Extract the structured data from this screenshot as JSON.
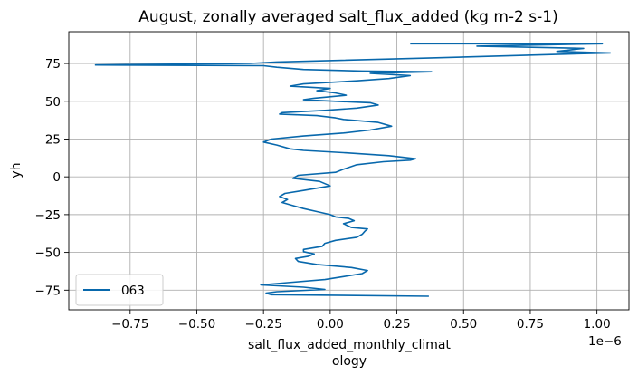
{
  "chart_data": {
    "type": "line",
    "title": "August, zonally averaged salt_flux_added (kg m-2 s-1)",
    "xlabel_line1": "salt_flux_added_monthly_climat",
    "xlabel_line2": "ology",
    "ylabel": "yh",
    "x_offset_text": "1e−6",
    "x_scale": 1e-06,
    "xlim": [
      -0.98,
      1.12
    ],
    "ylim": [
      -88,
      96
    ],
    "xticks": [
      -0.75,
      -0.5,
      -0.25,
      0.0,
      0.25,
      0.5,
      0.75,
      1.0
    ],
    "xtick_labels": [
      "−0.75",
      "−0.50",
      "−0.25",
      "0.00",
      "0.25",
      "0.50",
      "0.75",
      "1.00"
    ],
    "yticks": [
      75,
      50,
      25,
      0,
      -25,
      -50,
      -75
    ],
    "ytick_labels": [
      "75",
      "50",
      "25",
      "0",
      "−25",
      "−50",
      "−75"
    ],
    "grid": true,
    "legend_position": "lower-left",
    "color": "#0868ac",
    "series": [
      {
        "name": "063",
        "points": [
          [
            0.37,
            -79
          ],
          [
            -0.22,
            -78
          ],
          [
            -0.24,
            -77
          ],
          [
            -0.2,
            -76
          ],
          [
            -0.02,
            -74.5
          ],
          [
            -0.1,
            -73
          ],
          [
            -0.26,
            -71.5
          ],
          [
            -0.16,
            -70
          ],
          [
            -0.02,
            -68
          ],
          [
            0.05,
            -66
          ],
          [
            0.12,
            -64
          ],
          [
            0.14,
            -62
          ],
          [
            0.08,
            -60
          ],
          [
            -0.05,
            -58
          ],
          [
            -0.12,
            -56
          ],
          [
            -0.13,
            -54
          ],
          [
            -0.08,
            -52.5
          ],
          [
            -0.06,
            -51
          ],
          [
            -0.1,
            -49.5
          ],
          [
            -0.1,
            -48
          ],
          [
            -0.03,
            -46
          ],
          [
            -0.02,
            -44
          ],
          [
            0.02,
            -42
          ],
          [
            0.1,
            -40
          ],
          [
            0.12,
            -38
          ],
          [
            0.13,
            -36
          ],
          [
            0.14,
            -34.5
          ],
          [
            0.08,
            -33.5
          ],
          [
            0.05,
            -31
          ],
          [
            0.09,
            -29
          ],
          [
            0.07,
            -27.5
          ],
          [
            0.02,
            -26.5
          ],
          [
            0.0,
            -25
          ],
          [
            -0.05,
            -23
          ],
          [
            -0.1,
            -21
          ],
          [
            -0.14,
            -19
          ],
          [
            -0.18,
            -17
          ],
          [
            -0.16,
            -15
          ],
          [
            -0.19,
            -13
          ],
          [
            -0.17,
            -11
          ],
          [
            -0.1,
            -9
          ],
          [
            0.0,
            -6
          ],
          [
            -0.04,
            -3
          ],
          [
            -0.14,
            -1
          ],
          [
            -0.12,
            1
          ],
          [
            0.02,
            3
          ],
          [
            0.05,
            5
          ],
          [
            0.1,
            8
          ],
          [
            0.2,
            10
          ],
          [
            0.3,
            11
          ],
          [
            0.32,
            12
          ],
          [
            0.22,
            14
          ],
          [
            0.05,
            16
          ],
          [
            -0.1,
            17.5
          ],
          [
            -0.15,
            18.5
          ],
          [
            -0.2,
            21
          ],
          [
            -0.25,
            23
          ],
          [
            -0.22,
            25
          ],
          [
            -0.1,
            27
          ],
          [
            0.05,
            29
          ],
          [
            0.15,
            31
          ],
          [
            0.23,
            33.5
          ],
          [
            0.18,
            36
          ],
          [
            0.05,
            38
          ],
          [
            0.02,
            39
          ],
          [
            -0.05,
            40.5
          ],
          [
            -0.19,
            41.5
          ],
          [
            -0.18,
            42.5
          ],
          [
            -0.02,
            44
          ],
          [
            0.1,
            45.5
          ],
          [
            0.18,
            47.5
          ],
          [
            0.15,
            49
          ],
          [
            0.02,
            50
          ],
          [
            -0.1,
            51
          ],
          [
            -0.06,
            52
          ],
          [
            0.06,
            54
          ],
          [
            0.02,
            55.5
          ],
          [
            -0.05,
            57
          ],
          [
            0.0,
            58.5
          ],
          [
            -0.15,
            60
          ],
          [
            -0.1,
            61.5
          ],
          [
            0.1,
            63.5
          ],
          [
            0.22,
            65
          ],
          [
            0.3,
            67
          ],
          [
            0.15,
            68.5
          ],
          [
            0.38,
            69.5
          ],
          [
            0.12,
            70
          ],
          [
            -0.1,
            71
          ],
          [
            -0.2,
            72.5
          ],
          [
            -0.25,
            73.5
          ],
          [
            -0.88,
            74
          ],
          [
            -0.3,
            75
          ],
          [
            -0.2,
            76
          ],
          [
            0.35,
            78.5
          ],
          [
            0.65,
            80
          ],
          [
            1.05,
            82
          ],
          [
            0.85,
            83
          ],
          [
            0.95,
            85
          ],
          [
            0.55,
            86.5
          ],
          [
            1.02,
            88
          ],
          [
            0.3,
            88
          ]
        ]
      }
    ]
  }
}
